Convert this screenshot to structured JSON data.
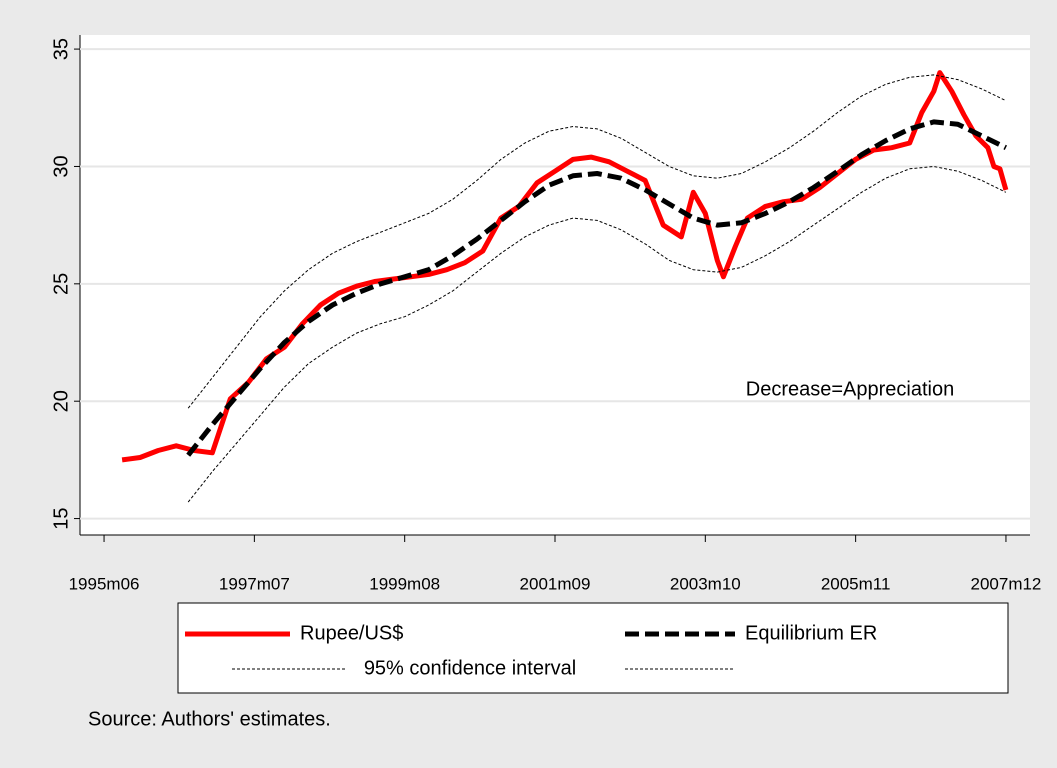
{
  "chart_data": {
    "type": "line",
    "xlim": [
      421,
      579
    ],
    "xticks": [
      {
        "value": 425,
        "label": "1995m06"
      },
      {
        "value": 450,
        "label": "1997m07"
      },
      {
        "value": 475,
        "label": "1999m08"
      },
      {
        "value": 500,
        "label": "2001m09"
      },
      {
        "value": 525,
        "label": "2003m10"
      },
      {
        "value": 550,
        "label": "2005m11"
      },
      {
        "value": 575,
        "label": "2007m12"
      }
    ],
    "ylim": [
      14.3,
      35.6
    ],
    "yticks": [
      15,
      20,
      25,
      30,
      35
    ],
    "grid": true,
    "annotation": "Decrease=Appreciation",
    "note": "Source: Authors' estimates.",
    "series": [
      {
        "name": "Rupee/US$",
        "color": "#ff0000",
        "style": "solid",
        "x": [
          428,
          431,
          434,
          437,
          440,
          443,
          446,
          449,
          452,
          455,
          458,
          461,
          464,
          467,
          470,
          473,
          476,
          479,
          482,
          485,
          488,
          491,
          494,
          497,
          500,
          503,
          506,
          509,
          512,
          515,
          518,
          521,
          523,
          525,
          527,
          528,
          530,
          532,
          535,
          538,
          541,
          544,
          547,
          550,
          553,
          556,
          559,
          561,
          563,
          564,
          566,
          568,
          570,
          572,
          573,
          574,
          575
        ],
        "values": [
          17.5,
          17.6,
          17.9,
          18.1,
          17.9,
          17.8,
          20.1,
          20.8,
          21.8,
          22.3,
          23.3,
          24.1,
          24.6,
          24.9,
          25.1,
          25.2,
          25.3,
          25.4,
          25.6,
          25.9,
          26.4,
          27.8,
          28.3,
          29.3,
          29.8,
          30.3,
          30.4,
          30.2,
          29.8,
          29.4,
          27.5,
          27.0,
          28.9,
          28.0,
          26.0,
          25.3,
          26.6,
          27.8,
          28.3,
          28.5,
          28.6,
          29.1,
          29.7,
          30.3,
          30.7,
          30.8,
          31.0,
          32.3,
          33.2,
          34.0,
          33.2,
          32.2,
          31.3,
          30.8,
          30.0,
          29.9,
          29.0
        ]
      },
      {
        "name": "Equilibrium ER",
        "color": "#000000",
        "style": "dashed",
        "x": [
          439,
          443,
          447,
          451,
          455,
          459,
          463,
          467,
          471,
          475,
          479,
          483,
          487,
          491,
          495,
          499,
          503,
          507,
          511,
          515,
          519,
          523,
          527,
          531,
          535,
          539,
          543,
          547,
          551,
          555,
          559,
          563,
          567,
          571,
          575
        ],
        "values": [
          17.7,
          19.0,
          20.2,
          21.4,
          22.5,
          23.4,
          24.1,
          24.6,
          25.0,
          25.3,
          25.6,
          26.2,
          26.9,
          27.7,
          28.5,
          29.2,
          29.6,
          29.7,
          29.5,
          29.0,
          28.4,
          27.8,
          27.5,
          27.6,
          28.0,
          28.5,
          29.1,
          29.8,
          30.5,
          31.1,
          31.6,
          31.9,
          31.8,
          31.3,
          30.8
        ]
      },
      {
        "name": "95% confidence interval",
        "color": "#000000",
        "style": "dotted",
        "x": [
          439,
          443,
          447,
          451,
          455,
          459,
          463,
          467,
          471,
          475,
          479,
          483,
          487,
          491,
          495,
          499,
          503,
          507,
          511,
          515,
          519,
          523,
          527,
          531,
          535,
          539,
          543,
          547,
          551,
          555,
          559,
          563,
          567,
          571,
          575
        ],
        "values": [
          19.7,
          21.0,
          22.3,
          23.6,
          24.7,
          25.6,
          26.3,
          26.8,
          27.2,
          27.6,
          28.0,
          28.6,
          29.4,
          30.3,
          31.0,
          31.5,
          31.7,
          31.6,
          31.2,
          30.6,
          30.0,
          29.6,
          29.5,
          29.7,
          30.2,
          30.8,
          31.5,
          32.3,
          33.0,
          33.5,
          33.8,
          33.9,
          33.7,
          33.3,
          32.8
        ],
        "lower": [
          15.7,
          17.0,
          18.2,
          19.4,
          20.6,
          21.6,
          22.3,
          22.9,
          23.3,
          23.6,
          24.1,
          24.7,
          25.5,
          26.3,
          27.0,
          27.5,
          27.8,
          27.7,
          27.3,
          26.7,
          26.0,
          25.6,
          25.5,
          25.7,
          26.2,
          26.8,
          27.5,
          28.2,
          28.9,
          29.5,
          29.9,
          30.0,
          29.8,
          29.4,
          28.9
        ]
      }
    ]
  }
}
